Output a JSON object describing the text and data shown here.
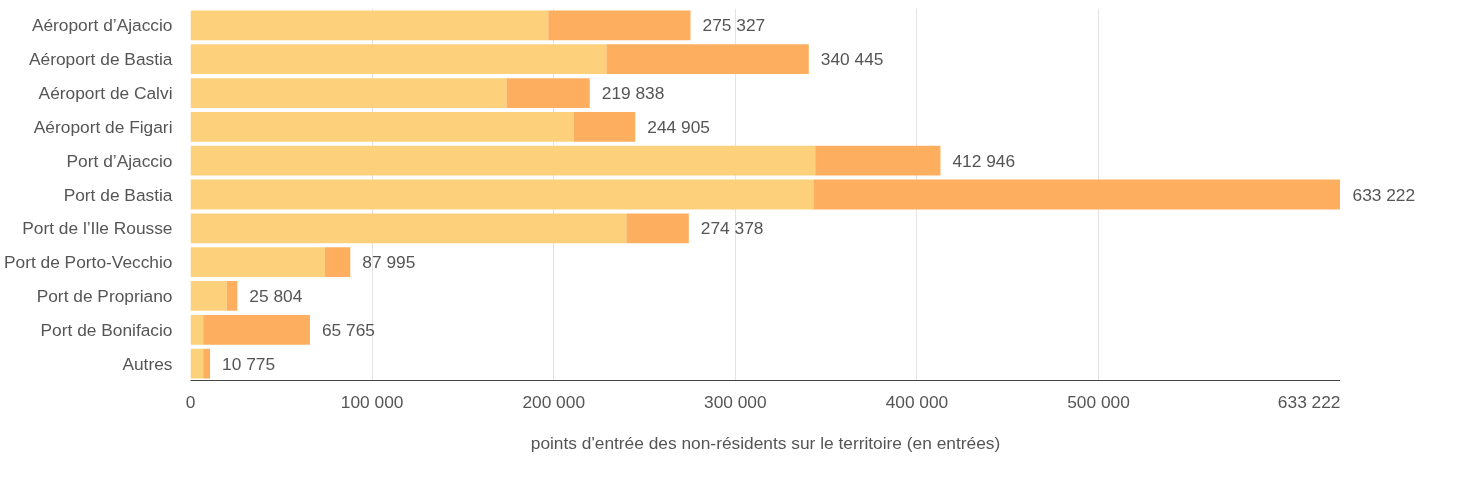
{
  "chart_data": {
    "type": "bar",
    "orientation": "horizontal",
    "stacked": true,
    "xlabel": "points d'entrée des non-résidents sur le territoire (en entrées)",
    "categories": [
      "Aéroport d’Ajaccio",
      "Aéroport de Bastia",
      "Aéroport de Calvi",
      "Aéroport de Figari",
      "Port d’Ajaccio",
      "Port de Bastia",
      "Port de l’Ile Rousse",
      "Port de Porto-Vecchio",
      "Port de Propriano",
      "Port de Bonifacio",
      "Autres"
    ],
    "series": [
      {
        "color": "#fdd07c",
        "values": [
          197000,
          229000,
          174000,
          211000,
          344000,
          343000,
          240000,
          74000,
          20000,
          7000,
          7000
        ]
      },
      {
        "color": "#fdae5f",
        "values": [
          78327,
          111445,
          45838,
          33905,
          68946,
          290222,
          34378,
          13995,
          5804,
          58765,
          3775
        ]
      }
    ],
    "totals": [
      "275 327",
      "340 445",
      "219 838",
      "244 905",
      "412 946",
      "633 222",
      "274 378",
      "87 995",
      "25 804",
      "65 765",
      "10 775"
    ],
    "xlim": [
      0,
      633222
    ],
    "xticks": [
      0,
      {
        "value": 100000,
        "label": "100 000"
      },
      {
        "value": 200000,
        "label": "200 000"
      },
      {
        "value": 300000,
        "label": "300 000"
      },
      {
        "value": 400000,
        "label": "400 000"
      },
      {
        "value": 500000,
        "label": "500 000"
      },
      {
        "value": 633222,
        "label": "633 222"
      }
    ],
    "grid": "x"
  }
}
